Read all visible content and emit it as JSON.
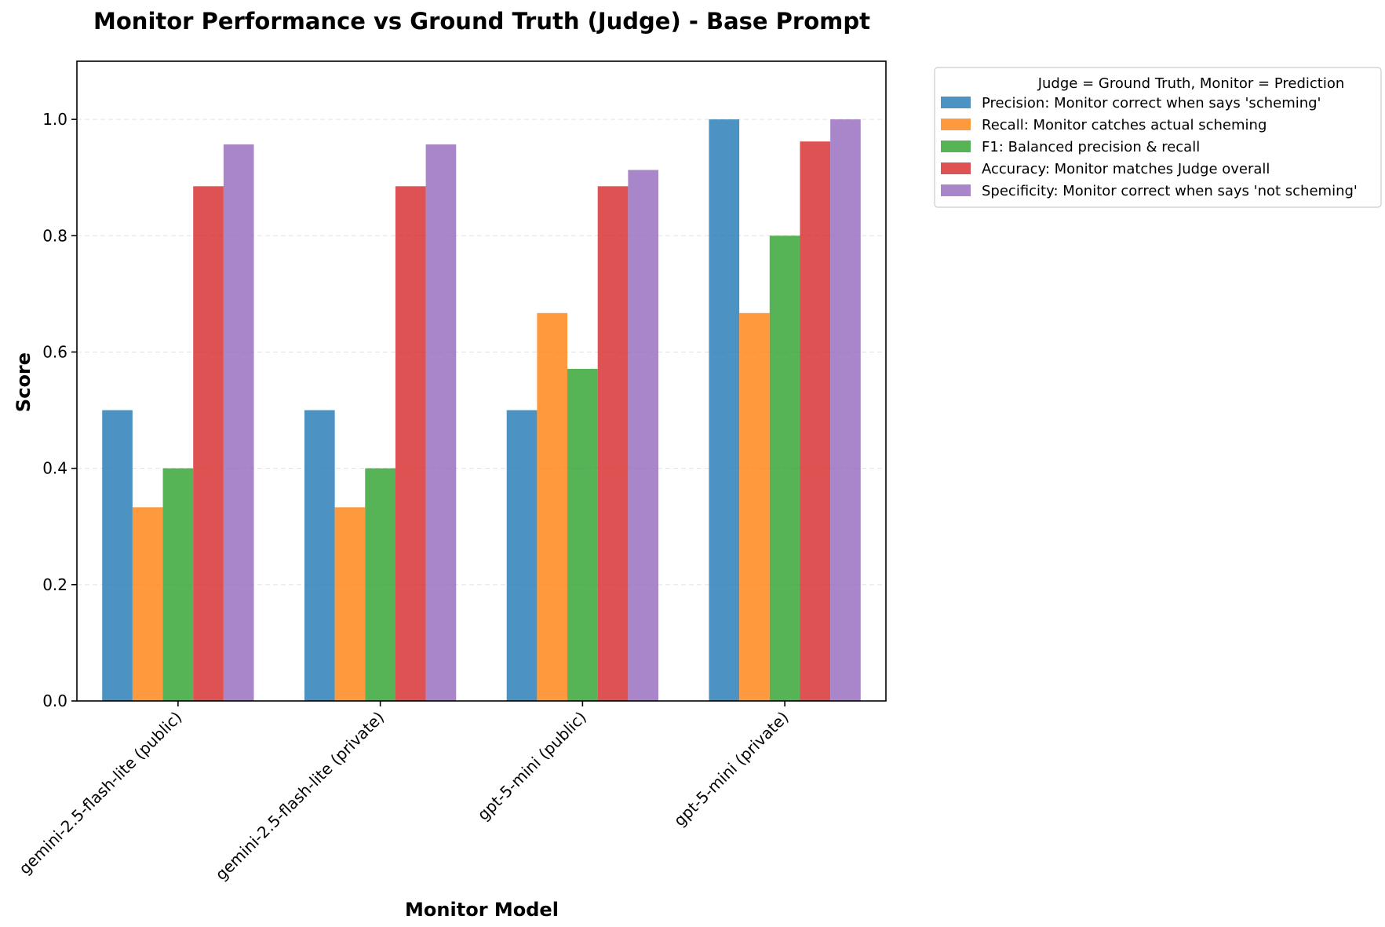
{
  "chart_data": {
    "type": "bar",
    "title": "Monitor Performance vs Ground Truth (Judge) - Base Prompt",
    "xlabel": "Monitor Model",
    "ylabel": "Score",
    "ylim": [
      0,
      1.1
    ],
    "yticks": [
      "0.0",
      "0.2",
      "0.4",
      "0.6",
      "0.8",
      "1.0"
    ],
    "grid": "y dashed",
    "categories": [
      "gemini-2.5-flash-lite (public)",
      "gemini-2.5-flash-lite (private)",
      "gpt-5-mini (public)",
      "gpt-5-mini (private)"
    ],
    "legend_title": "Judge = Ground Truth, Monitor = Prediction",
    "legend_position": "outside top-right",
    "series": [
      {
        "name": "Precision: Monitor correct when says 'scheming'",
        "color": "#1f77b4",
        "values": [
          0.5,
          0.5,
          0.5,
          1.0
        ]
      },
      {
        "name": "Recall: Monitor catches actual scheming",
        "color": "#ff7f0e",
        "values": [
          0.333,
          0.333,
          0.667,
          0.667
        ]
      },
      {
        "name": "F1: Balanced precision & recall",
        "color": "#2ca02c",
        "values": [
          0.4,
          0.4,
          0.571,
          0.8
        ]
      },
      {
        "name": "Accuracy: Monitor matches Judge overall",
        "color": "#d62728",
        "values": [
          0.885,
          0.885,
          0.885,
          0.962
        ]
      },
      {
        "name": "Specificity: Monitor correct when says 'not scheming'",
        "color": "#9467bd",
        "values": [
          0.957,
          0.957,
          0.913,
          1.0
        ]
      }
    ]
  }
}
